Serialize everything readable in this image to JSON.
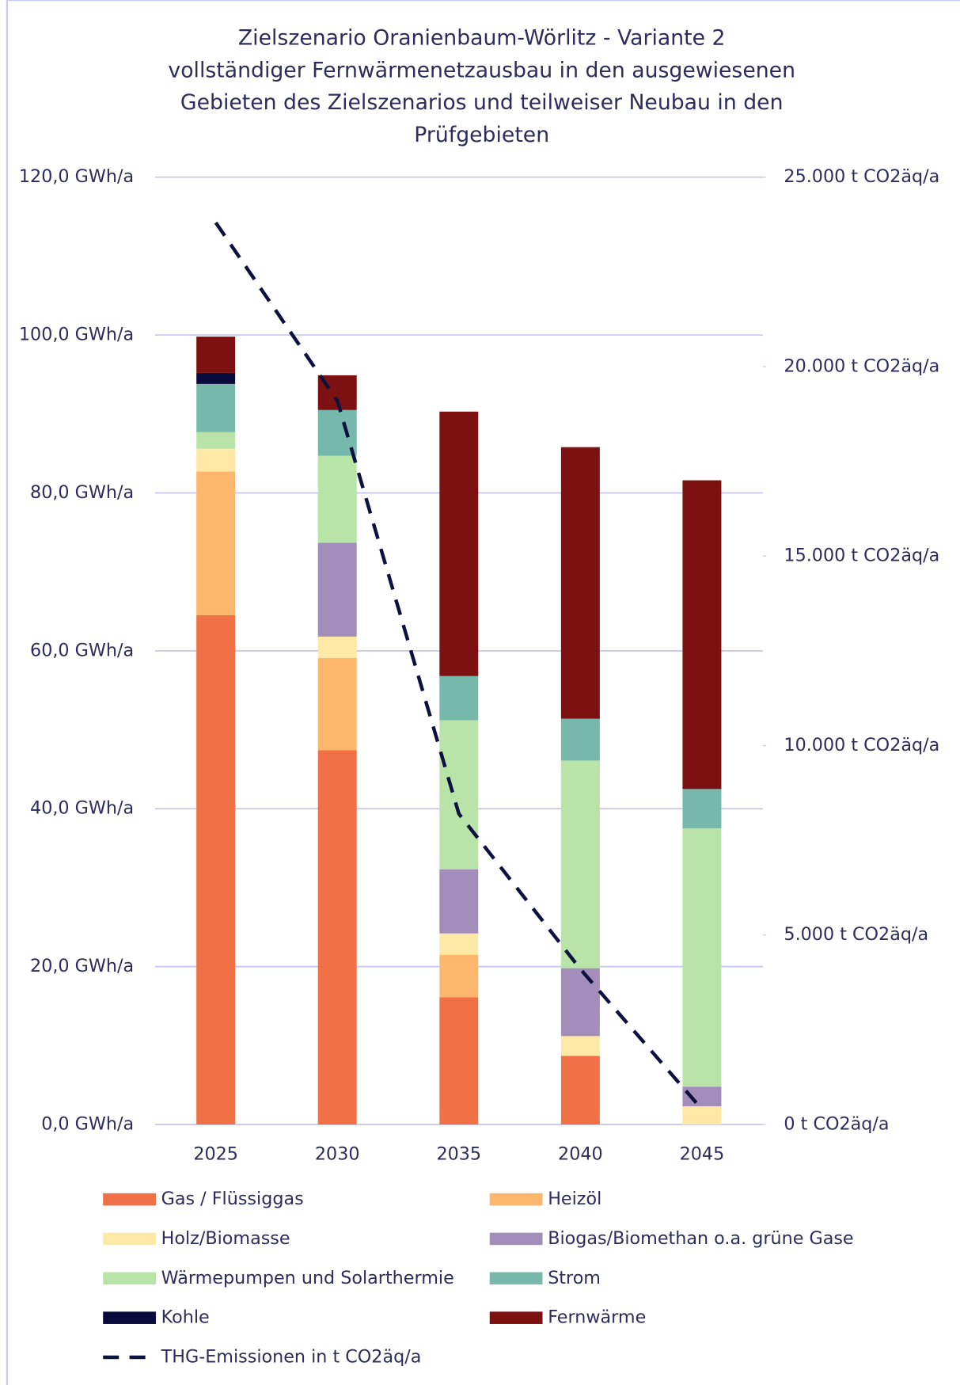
{
  "chart_data": {
    "type": "bar",
    "title": [
      "Zielszenario Oranienbaum-Wörlitz - Variante 2",
      "vollständiger Fernwärmenetzausbau in den ausgewiesenen",
      "Gebieten des Zielszenarios und teilweiser Neubau in den",
      "Prüfgebieten"
    ],
    "stacked": true,
    "categories": [
      "2025",
      "2030",
      "2035",
      "2040",
      "2045"
    ],
    "series": [
      {
        "name": "Gas / Flüssiggas",
        "color": "#ef7145",
        "values": [
          64.5,
          47.4,
          16.1,
          8.7,
          0
        ]
      },
      {
        "name": "Heizöl",
        "color": "#fdb76d",
        "values": [
          18.2,
          11.7,
          5.4,
          0,
          0
        ]
      },
      {
        "name": "Holz/Biomasse",
        "color": "#fee8a5",
        "values": [
          2.9,
          2.7,
          2.7,
          2.5,
          2.3
        ]
      },
      {
        "name": "Biogas/Biomethan o.a. grüne Gase",
        "color": "#a38dbb",
        "values": [
          0,
          11.9,
          8.1,
          8.6,
          2.5
        ]
      },
      {
        "name": "Wärmepumpen und Solarthermie",
        "color": "#b8e4a8",
        "values": [
          2.1,
          11.0,
          18.9,
          26.3,
          32.7
        ]
      },
      {
        "name": "Strom",
        "color": "#76b8ab",
        "values": [
          6.1,
          5.8,
          5.6,
          5.3,
          5.0
        ]
      },
      {
        "name": "Kohle",
        "color": "#0a0a3c",
        "values": [
          1.4,
          0,
          0,
          0,
          0
        ]
      },
      {
        "name": "Fernwärme",
        "color": "#7d1010",
        "values": [
          4.6,
          4.4,
          33.5,
          34.4,
          39.1
        ]
      },
      {
        "name": "THG-Emissionen in t CO2äq/a",
        "color": "#0d1140",
        "type": "line",
        "dashed": true,
        "axis": "y2",
        "values": [
          23800,
          19100,
          8200,
          4100,
          400
        ]
      }
    ],
    "ylim": [
      0,
      120
    ],
    "yticks": [
      {
        "value": 0,
        "label": "0,0 GWh/a"
      },
      {
        "value": 20,
        "label": "20,0 GWh/a"
      },
      {
        "value": 40,
        "label": "40,0 GWh/a"
      },
      {
        "value": 60,
        "label": "60,0 GWh/a"
      },
      {
        "value": 80,
        "label": "80,0 GWh/a"
      },
      {
        "value": 100,
        "label": "100,0 GWh/a"
      },
      {
        "value": 120,
        "label": "120,0 GWh/a"
      }
    ],
    "y2lim": [
      0,
      25000
    ],
    "y2ticks": [
      {
        "value": 0,
        "label": "0 t CO2äq/a"
      },
      {
        "value": 5000,
        "label": "5.000 t CO2äq/a"
      },
      {
        "value": 10000,
        "label": "10.000 t CO2äq/a"
      },
      {
        "value": 15000,
        "label": "15.000 t CO2äq/a"
      },
      {
        "value": 20000,
        "label": "20.000 t CO2äq/a"
      },
      {
        "value": 25000,
        "label": "25.000 t CO2äq/a"
      }
    ],
    "grid": true,
    "legend": "bottom"
  }
}
